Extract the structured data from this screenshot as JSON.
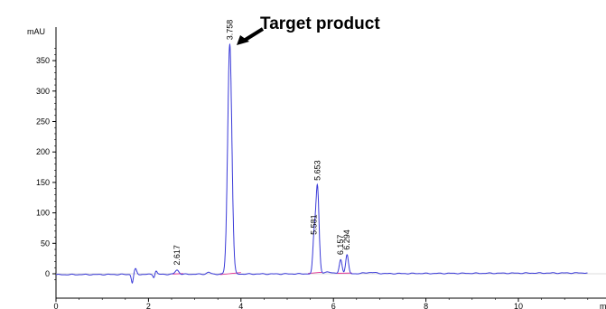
{
  "chart_data": {
    "type": "line",
    "title": "",
    "xlabel": "",
    "ylabel": "mAU",
    "xunit_fragment": "m",
    "xlim": [
      0,
      11.5
    ],
    "ylim": [
      -12,
      400
    ],
    "xticks": [
      0,
      2,
      4,
      6,
      8,
      10
    ],
    "yticks": [
      0,
      50,
      100,
      150,
      200,
      250,
      300,
      350
    ],
    "xtick_labels": [
      "0",
      "2",
      "4",
      "6",
      "8",
      "10"
    ],
    "ytick_labels": [
      "0",
      "50",
      "100",
      "150",
      "200",
      "250",
      "300",
      "350"
    ],
    "grid": false,
    "colors": {
      "signal": "#3a3ad8",
      "baseline": "#e0208a",
      "axis": "#000000"
    },
    "peaks": [
      {
        "label": "2.617",
        "rt": 2.617,
        "height": 8
      },
      {
        "label": "3.758",
        "rt": 3.758,
        "height": 378
      },
      {
        "label": "5.581",
        "rt": 5.581,
        "height": 58
      },
      {
        "label": "5.653",
        "rt": 5.653,
        "height": 147
      },
      {
        "label": "6.157",
        "rt": 6.157,
        "height": 25
      },
      {
        "label": "6.294",
        "rt": 6.294,
        "height": 33
      }
    ],
    "annotation": {
      "text": "Target product",
      "points_to_rt": 3.758
    }
  }
}
